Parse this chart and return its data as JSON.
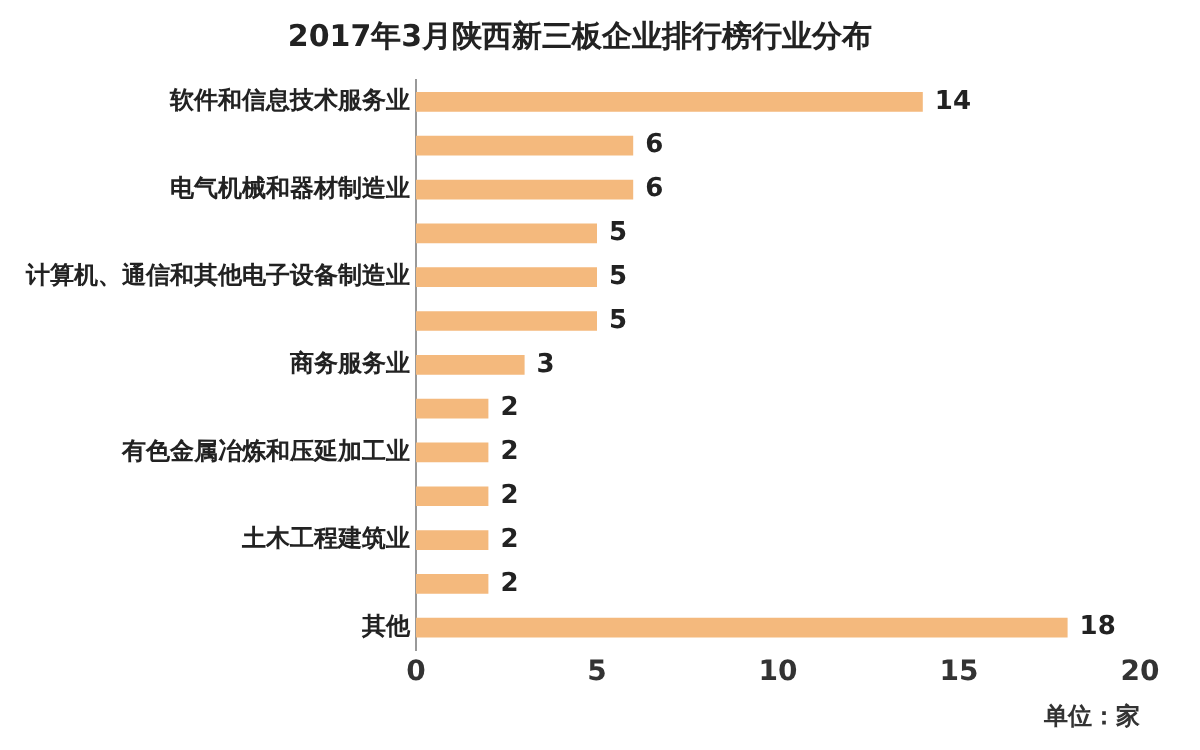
{
  "chart_data": {
    "type": "bar",
    "orientation": "horizontal",
    "title": "2017年3月陕西新三板企业排行榜行业分布",
    "xlabel": "单位：家",
    "categories": [
      "软件和信息技术服务业",
      null,
      "电气机械和器材制造业",
      null,
      "计算机、通信和其他电子设备制造业",
      null,
      "商务服务业",
      null,
      "有色金属冶炼和压延加工业",
      null,
      "土木工程建筑业",
      null,
      "其他"
    ],
    "values": [
      14,
      6,
      6,
      5,
      5,
      5,
      3,
      2,
      2,
      2,
      2,
      2,
      18
    ],
    "color": "#f4b97d",
    "xlim": [
      0,
      20
    ],
    "xticks": [
      0,
      5,
      10,
      15,
      20
    ],
    "grid": false,
    "legend": false,
    "data_labels": true
  }
}
